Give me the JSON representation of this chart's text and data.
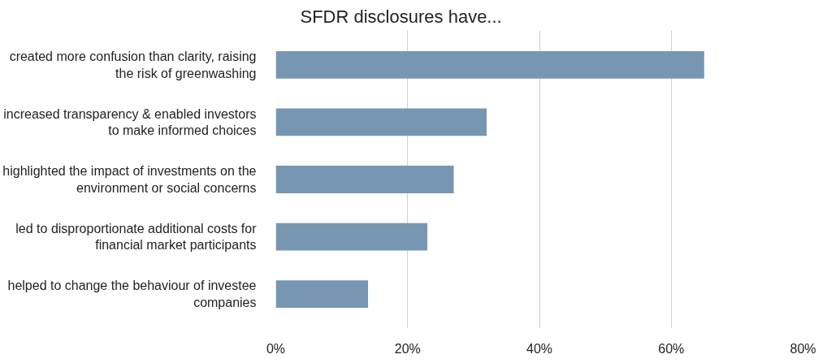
{
  "chart_data": {
    "type": "bar",
    "orientation": "horizontal",
    "title": "SFDR disclosures have...",
    "categories": [
      "created more confusion than clarity, raising the risk of greenwashing",
      "increased transparency & enabled investors to make informed choices",
      "highlighted the impact of investments on the environment or social concerns",
      "led to disproportionate additional costs for financial market participants",
      "helped to change the behaviour of investee companies"
    ],
    "values": [
      65,
      32,
      27,
      23,
      14
    ],
    "color": "#7796b2",
    "xlim": [
      0,
      80
    ],
    "xticks": [
      {
        "value": 0,
        "label": "0%"
      },
      {
        "value": 20,
        "label": "20%"
      },
      {
        "value": 40,
        "label": "40%"
      },
      {
        "value": 60,
        "label": "60%"
      },
      {
        "value": 80,
        "label": "80%"
      }
    ],
    "grid": "x"
  }
}
